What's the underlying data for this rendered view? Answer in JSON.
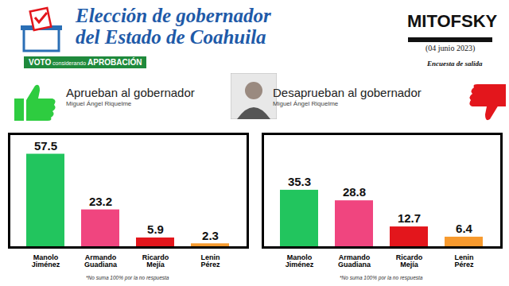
{
  "header": {
    "title_lines": [
      "Elección de gobernador",
      "del Estado de Coahuila"
    ],
    "banner": [
      "VOTO",
      "considerando",
      "APROBACIÓN"
    ],
    "logo": "MITOFSKY",
    "date": "(04 junio 2023)",
    "survey": "Encuesta de salida"
  },
  "chart_data": [
    {
      "type": "bar",
      "title": "Aprueban al gobernador",
      "subtitle": "Miguel Ángel Riquelme",
      "note": "*No suma 100% por la no respuesta",
      "categories": [
        "Manolo Jiménez",
        "Armando Guadiana",
        "Ricardo Mejía",
        "Lenin Pérez"
      ],
      "values": [
        57.5,
        23.2,
        5.9,
        2.3
      ],
      "colors": [
        "#22c55e",
        "#f0457f",
        "#e3161c",
        "#f79a2e"
      ],
      "ylim": [
        0,
        70
      ],
      "data_labels": true,
      "tick_labels": "x"
    },
    {
      "type": "bar",
      "title": "Desaprueban al gobernador",
      "subtitle": "Miguel Ángel Riquelme",
      "note": "*No suma 100% por la no respuesta",
      "categories": [
        "Manolo Jiménez",
        "Armando Guadiana",
        "Ricardo Mejía",
        "Lenin Pérez"
      ],
      "values": [
        35.3,
        28.8,
        12.7,
        6.4
      ],
      "colors": [
        "#22c55e",
        "#f0457f",
        "#e3161c",
        "#f79a2e"
      ],
      "ylim": [
        0,
        70
      ],
      "data_labels": true,
      "tick_labels": "x"
    }
  ]
}
